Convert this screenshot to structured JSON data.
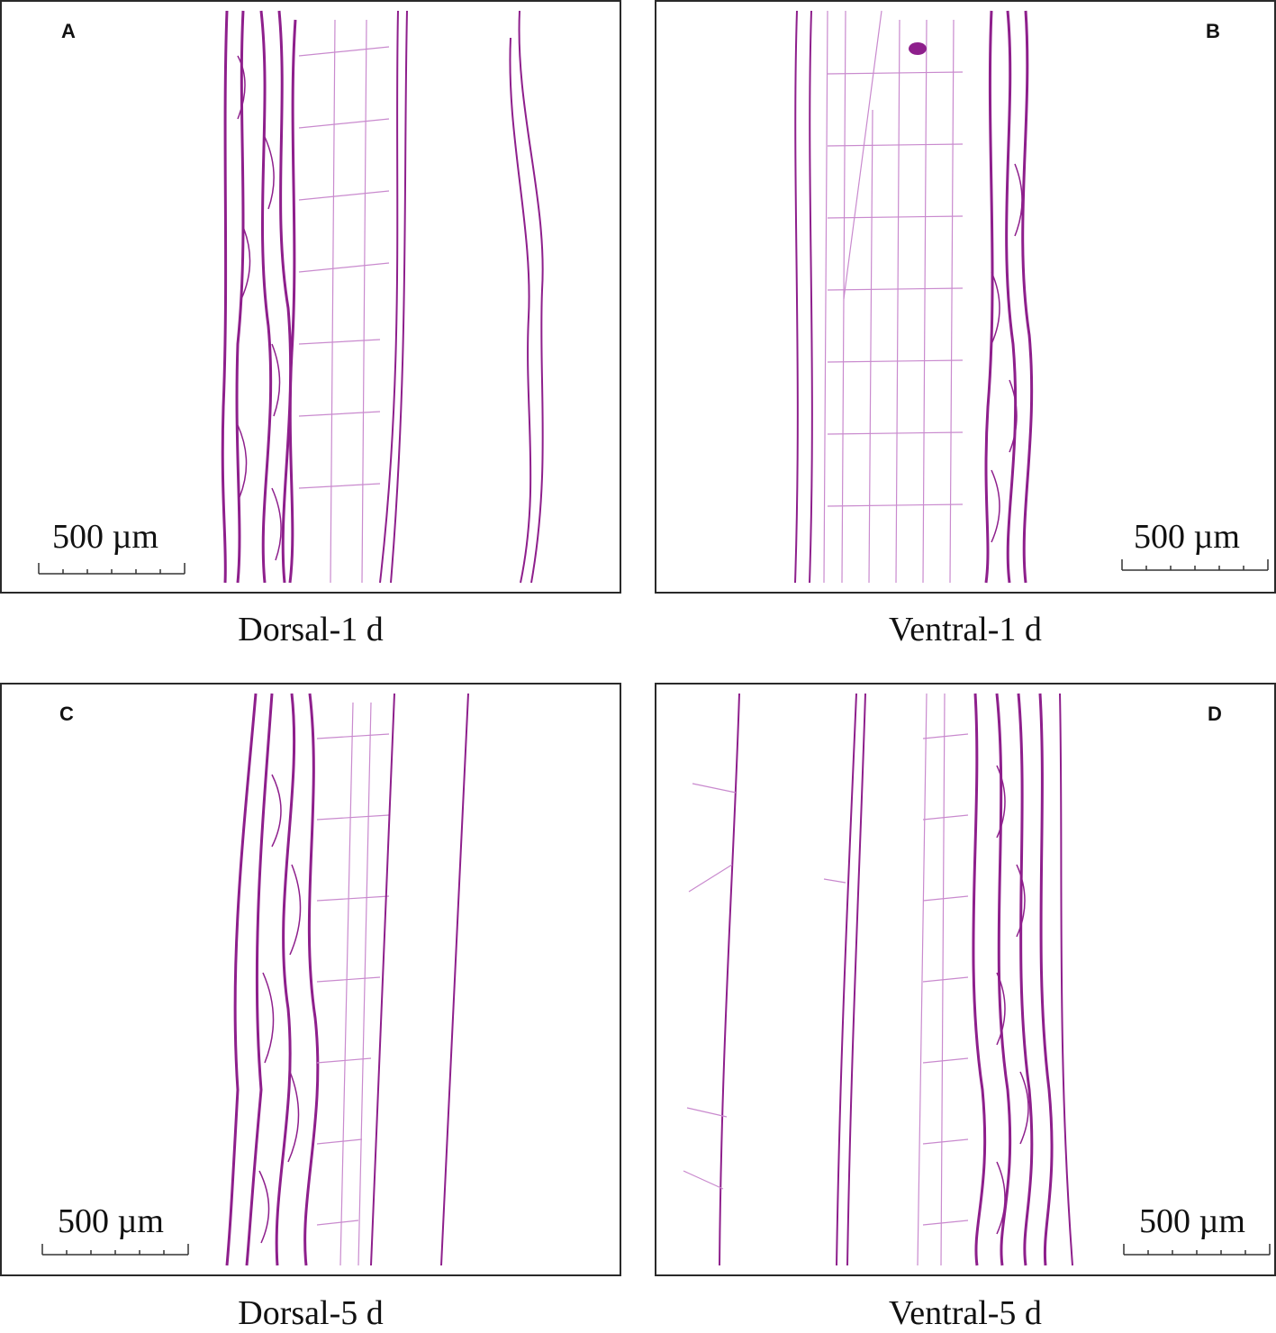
{
  "panels": [
    {
      "label": "A",
      "scale_bar": "500 µm",
      "caption": "Dorsal-1 d"
    },
    {
      "label": "B",
      "scale_bar": "500 µm",
      "caption": "Ventral-1 d"
    },
    {
      "label": "C",
      "scale_bar": "500 µm",
      "caption": "Dorsal-5 d"
    },
    {
      "label": "D",
      "scale_bar": "500 µm",
      "caption": "Ventral-5 d"
    }
  ],
  "colors": {
    "stain_dark": "#8e1f8c",
    "stain_light": "#d9a6dc",
    "frame": "#2a2a2a"
  }
}
